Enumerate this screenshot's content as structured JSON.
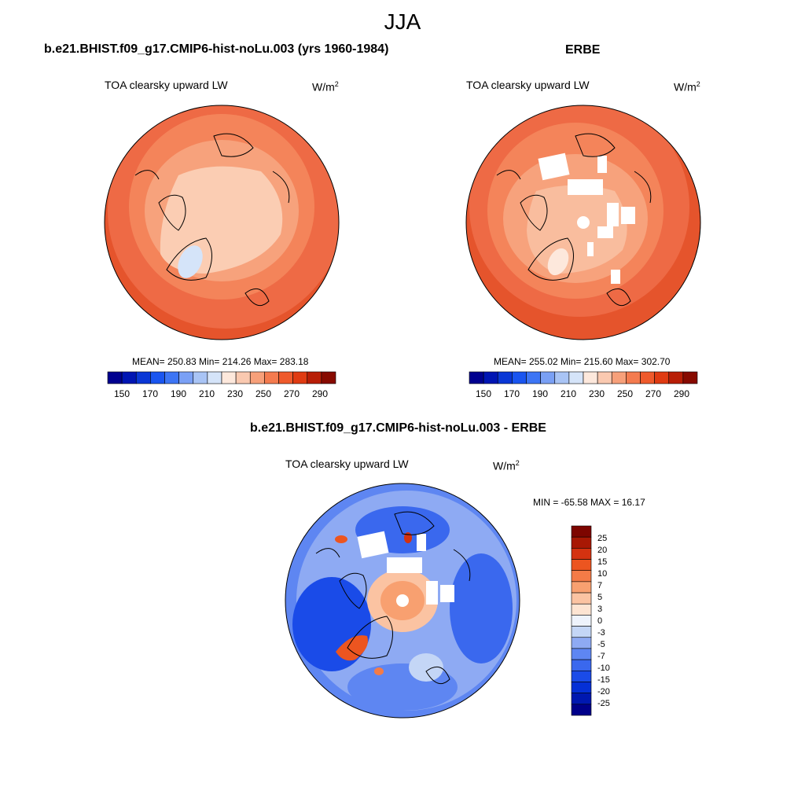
{
  "figure": {
    "title": "JJA"
  },
  "panels": {
    "model": {
      "title": "b.e21.BHIST.f09_g17.CMIP6-hist-noLu.003 (yrs 1960-1984)",
      "variable": "TOA clearsky upward LW",
      "units_base": "W/m",
      "units_exp": "2",
      "stats": "MEAN= 250.83  Min= 214.26  Max= 283.18"
    },
    "obs": {
      "title": "ERBE",
      "variable": "TOA clearsky upward LW",
      "units_base": "W/m",
      "units_exp": "2",
      "stats": "MEAN= 255.02  Min= 215.60  Max= 302.70"
    },
    "diff": {
      "title": "b.e21.BHIST.f09_g17.CMIP6-hist-noLu.003 - ERBE",
      "variable": "TOA clearsky upward LW",
      "units_base": "W/m",
      "units_exp": "2",
      "stats": "MIN = -65.58 MAX =  16.17"
    }
  },
  "colorbars": {
    "absolute": {
      "colors": [
        "#00008f",
        "#0015b3",
        "#0a37d6",
        "#1a55f0",
        "#3d75f5",
        "#7aa0f5",
        "#a9c4f5",
        "#d5e4f9",
        "#fde8dc",
        "#fac9b0",
        "#f7a07a",
        "#f47b4f",
        "#ef5a2c",
        "#e03b12",
        "#b81e06",
        "#870a00"
      ],
      "labels": [
        "150",
        "170",
        "190",
        "210",
        "230",
        "250",
        "270",
        "290"
      ]
    },
    "difference": {
      "colors": [
        "#00008a",
        "#0018b0",
        "#0530d6",
        "#1a4be8",
        "#3a68ee",
        "#5e86f2",
        "#8eaaf3",
        "#c4d6f6",
        "#eef3fc",
        "#fde4d2",
        "#fbc3a2",
        "#f8a070",
        "#f47b47",
        "#ec5520",
        "#d43210",
        "#a81804",
        "#7d0500"
      ],
      "labels": [
        "25",
        "20",
        "15",
        "10",
        "7",
        "5",
        "3",
        "0",
        "-3",
        "-5",
        "-7",
        "-10",
        "-15",
        "-20",
        "-25"
      ]
    }
  },
  "maps": {
    "model_rings": [
      "#ee6a45",
      "#f4845a",
      "#f7a27c",
      "#f9bd9e",
      "#fbcdb3"
    ],
    "obs_rings": [
      "#e5542c",
      "#ee6a45",
      "#f4845a",
      "#f7a27c",
      "#f9bd9e"
    ],
    "diff_base": "#5a85ee",
    "missing": "#ffffff"
  }
}
